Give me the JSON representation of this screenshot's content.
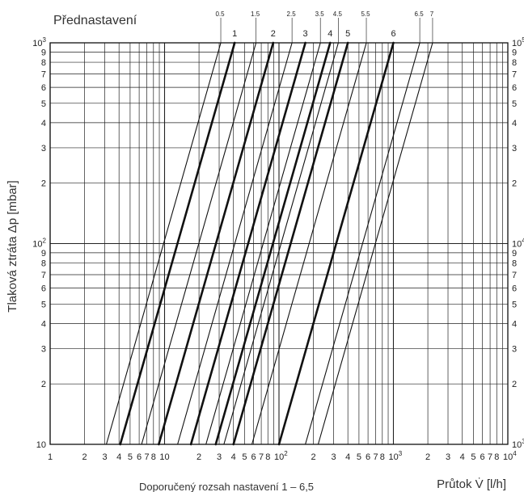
{
  "chart_data": {
    "type": "line",
    "title": "Přednastavení",
    "ylabel": "Tlaková ztráta Δp [mbar]",
    "xlabel": "Průtok V̇ [l/h]",
    "footnote": "Doporučený rozsah nastavení 1 – 6,5",
    "x_scale": "log",
    "y_scale": "log",
    "xlim": [
      1,
      10000
    ],
    "ylim": [
      10,
      1000
    ],
    "y2lim": [
      1000,
      100000
    ],
    "grid": true,
    "x_tick_labels": [
      {
        "v": 1,
        "t": "1"
      },
      {
        "v": 2,
        "t": "2"
      },
      {
        "v": 3,
        "t": "3"
      },
      {
        "v": 4,
        "t": "4"
      },
      {
        "v": 5,
        "t": "5"
      },
      {
        "v": 6,
        "t": "6"
      },
      {
        "v": 7,
        "t": "7"
      },
      {
        "v": 8,
        "t": "8"
      },
      {
        "v": 10,
        "t": "10"
      },
      {
        "v": 20,
        "t": "2"
      },
      {
        "v": 30,
        "t": "3"
      },
      {
        "v": 40,
        "t": "4"
      },
      {
        "v": 50,
        "t": "5"
      },
      {
        "v": 60,
        "t": "6"
      },
      {
        "v": 70,
        "t": "7"
      },
      {
        "v": 80,
        "t": "8"
      },
      {
        "v": 100,
        "t": "10",
        "sup": "2"
      },
      {
        "v": 200,
        "t": "2"
      },
      {
        "v": 300,
        "t": "3"
      },
      {
        "v": 400,
        "t": "4"
      },
      {
        "v": 500,
        "t": "5"
      },
      {
        "v": 600,
        "t": "6"
      },
      {
        "v": 700,
        "t": "7"
      },
      {
        "v": 800,
        "t": "8"
      },
      {
        "v": 1000,
        "t": "10",
        "sup": "3"
      },
      {
        "v": 2000,
        "t": "2"
      },
      {
        "v": 3000,
        "t": "3"
      },
      {
        "v": 4000,
        "t": "4"
      },
      {
        "v": 5000,
        "t": "5"
      },
      {
        "v": 6000,
        "t": "6"
      },
      {
        "v": 7000,
        "t": "7"
      },
      {
        "v": 8000,
        "t": "8"
      },
      {
        "v": 10000,
        "t": "10",
        "sup": "4"
      }
    ],
    "y_tick_labels": [
      {
        "v": 10,
        "t": "10"
      },
      {
        "v": 20,
        "t": "2"
      },
      {
        "v": 30,
        "t": "3"
      },
      {
        "v": 40,
        "t": "4"
      },
      {
        "v": 50,
        "t": "5"
      },
      {
        "v": 60,
        "t": "6"
      },
      {
        "v": 70,
        "t": "7"
      },
      {
        "v": 80,
        "t": "8"
      },
      {
        "v": 90,
        "t": "9"
      },
      {
        "v": 100,
        "t": "10",
        "sup": "2"
      },
      {
        "v": 200,
        "t": "2"
      },
      {
        "v": 300,
        "t": "3"
      },
      {
        "v": 400,
        "t": "4"
      },
      {
        "v": 500,
        "t": "5"
      },
      {
        "v": 600,
        "t": "6"
      },
      {
        "v": 700,
        "t": "7"
      },
      {
        "v": 800,
        "t": "8"
      },
      {
        "v": 900,
        "t": "9"
      },
      {
        "v": 1000,
        "t": "10",
        "sup": "3"
      }
    ],
    "y2_tick_labels": [
      {
        "v": 1000,
        "t": "10",
        "sup": "3"
      },
      {
        "v": 2000,
        "t": "2"
      },
      {
        "v": 3000,
        "t": "3"
      },
      {
        "v": 4000,
        "t": "4"
      },
      {
        "v": 5000,
        "t": "5"
      },
      {
        "v": 6000,
        "t": "6"
      },
      {
        "v": 7000,
        "t": "7"
      },
      {
        "v": 8000,
        "t": "8"
      },
      {
        "v": 9000,
        "t": "9"
      },
      {
        "v": 10000,
        "t": "10",
        "sup": "4"
      },
      {
        "v": 20000,
        "t": "2"
      },
      {
        "v": 30000,
        "t": "3"
      },
      {
        "v": 40000,
        "t": "4"
      },
      {
        "v": 50000,
        "t": "5"
      },
      {
        "v": 60000,
        "t": "6"
      },
      {
        "v": 70000,
        "t": "7"
      },
      {
        "v": 80000,
        "t": "8"
      },
      {
        "v": 90000,
        "t": "9"
      },
      {
        "v": 100000,
        "t": "10",
        "sup": "5"
      }
    ],
    "series": [
      {
        "name": "0.5",
        "weight": "thin",
        "points": [
          [
            3.1,
            10
          ],
          [
            31,
            1000
          ]
        ]
      },
      {
        "name": "1",
        "weight": "thick",
        "points": [
          [
            4.1,
            10
          ],
          [
            41,
            1000
          ]
        ]
      },
      {
        "name": "1.5",
        "weight": "thin",
        "points": [
          [
            6.3,
            10
          ],
          [
            63,
            1000
          ]
        ]
      },
      {
        "name": "2",
        "weight": "thick",
        "points": [
          [
            8.9,
            10
          ],
          [
            89,
            1000
          ]
        ]
      },
      {
        "name": "2.5",
        "weight": "thin",
        "points": [
          [
            13,
            10
          ],
          [
            130,
            1000
          ]
        ]
      },
      {
        "name": "3",
        "weight": "thick",
        "points": [
          [
            17,
            10
          ],
          [
            170,
            1000
          ]
        ]
      },
      {
        "name": "3.5",
        "weight": "thin",
        "points": [
          [
            23,
            10
          ],
          [
            230,
            1000
          ]
        ]
      },
      {
        "name": "4",
        "weight": "thick",
        "points": [
          [
            28,
            10
          ],
          [
            280,
            1000
          ]
        ]
      },
      {
        "name": "4.5",
        "weight": "thin",
        "points": [
          [
            33,
            10
          ],
          [
            330,
            1000
          ]
        ]
      },
      {
        "name": "5",
        "weight": "thick",
        "points": [
          [
            40,
            10
          ],
          [
            400,
            1000
          ]
        ]
      },
      {
        "name": "5.5",
        "weight": "thin",
        "points": [
          [
            58,
            10
          ],
          [
            580,
            1000
          ]
        ]
      },
      {
        "name": "6",
        "weight": "thick",
        "points": [
          [
            100,
            10
          ],
          [
            1000,
            1000
          ]
        ]
      },
      {
        "name": "6.5",
        "weight": "thin",
        "points": [
          [
            170,
            10
          ],
          [
            1700,
            1000
          ]
        ]
      },
      {
        "name": "7",
        "weight": "thin",
        "points": [
          [
            220,
            10
          ],
          [
            2200,
            1000
          ]
        ]
      }
    ]
  }
}
